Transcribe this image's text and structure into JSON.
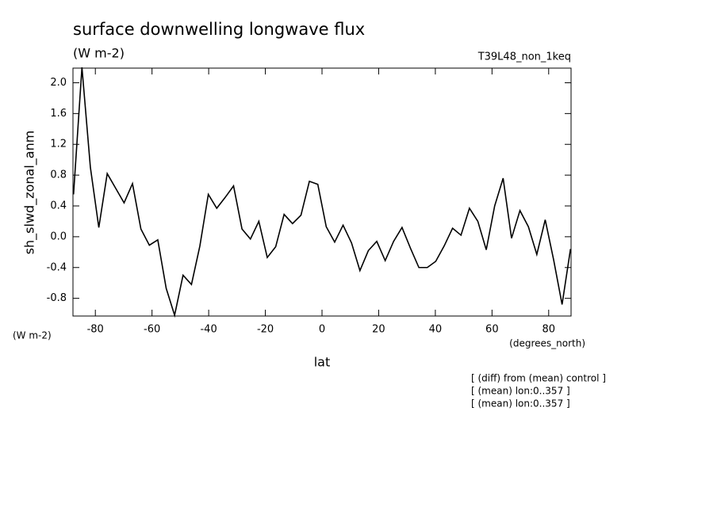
{
  "chart_data": {
    "type": "line",
    "title": "surface downwelling longwave flux",
    "subtitle": "(W m-2)",
    "run_label": "T39L48_non_1keq",
    "y_axis_label": "sh_slwd_zonal_anm",
    "y_units": "(W m-2)",
    "x_units": "(degrees_north)",
    "x_axis_label": "lat",
    "notes": [
      "[ (diff) from (mean) control ]",
      "[ (mean) lon:0..357 ]",
      "[ (mean) lon:0..357 ]"
    ],
    "xlim": [
      -87.9,
      87.9
    ],
    "ylim": [
      -1.03,
      2.19
    ],
    "xticks": [
      -80,
      -60,
      -40,
      -20,
      0,
      20,
      40,
      60,
      80
    ],
    "yticks": [
      {
        "value": -0.8,
        "label": "-0.8"
      },
      {
        "value": -0.4,
        "label": "-0.4"
      },
      {
        "value": 0,
        "label": "0.0"
      },
      {
        "value": 0.4,
        "label": "0.4"
      },
      {
        "value": 0.8,
        "label": "0.8"
      },
      {
        "value": 1.2,
        "label": "1.2"
      },
      {
        "value": 1.6,
        "label": "1.6"
      },
      {
        "value": 2,
        "label": "2.0"
      }
    ],
    "x": [
      -87.7,
      -84.73,
      -81.75,
      -78.78,
      -75.81,
      -72.84,
      -69.86,
      -66.89,
      -63.92,
      -60.94,
      -57.97,
      -55.0,
      -52.03,
      -49.05,
      -46.08,
      -43.11,
      -40.13,
      -37.16,
      -34.19,
      -31.22,
      -28.24,
      -25.27,
      -22.3,
      -19.32,
      -16.35,
      -13.38,
      -10.41,
      -7.43,
      -4.46,
      -1.49,
      1.49,
      4.46,
      7.43,
      10.41,
      13.38,
      16.35,
      19.32,
      22.3,
      25.27,
      28.24,
      31.22,
      34.19,
      37.16,
      40.13,
      43.11,
      46.08,
      49.05,
      52.03,
      55.0,
      57.97,
      60.94,
      63.92,
      66.89,
      69.86,
      72.84,
      75.81,
      78.78,
      81.75,
      84.73,
      87.7
    ],
    "series": [
      {
        "name": "sh_slwd_zonal_anm",
        "color": "#000000",
        "values": [
          0.55,
          2.2,
          0.9,
          0.12,
          0.82,
          0.63,
          0.44,
          0.69,
          0.1,
          -0.11,
          -0.04,
          -0.67,
          -1.02,
          -0.5,
          -0.62,
          -0.12,
          0.55,
          0.37,
          0.51,
          0.66,
          0.1,
          -0.03,
          0.2,
          -0.27,
          -0.13,
          0.29,
          0.17,
          0.28,
          0.72,
          0.68,
          0.13,
          -0.07,
          0.15,
          -0.08,
          -0.44,
          -0.18,
          -0.06,
          -0.31,
          -0.06,
          0.12,
          -0.15,
          -0.4,
          -0.4,
          -0.32,
          -0.12,
          0.11,
          0.02,
          0.37,
          0.2,
          -0.17,
          0.4,
          0.76,
          -0.02,
          0.34,
          0.13,
          -0.23,
          0.22,
          -0.3,
          -0.88,
          -0.16
        ]
      }
    ]
  }
}
